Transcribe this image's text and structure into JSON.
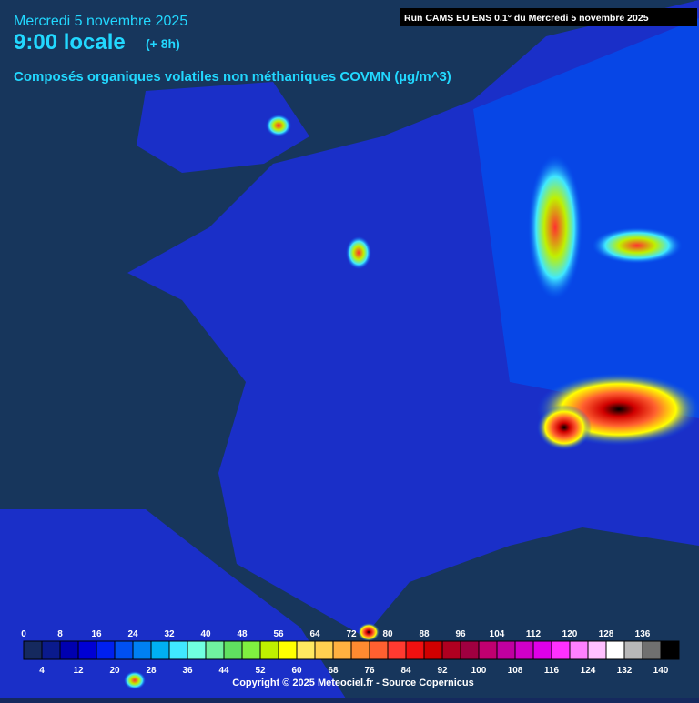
{
  "header": {
    "date": "Mercredi 5 novembre 2025",
    "time": "9:00 locale",
    "lead": "(+ 8h)",
    "run": "Run CAMS EU ENS 0.1° du Mercredi 5 novembre 2025",
    "subtitle": "Composés organiques volatiles non méthaniques COVMN (µg/m^3)"
  },
  "legend": {
    "labels": [
      0,
      4,
      8,
      12,
      16,
      20,
      24,
      28,
      32,
      36,
      40,
      44,
      48,
      52,
      56,
      60,
      64,
      68,
      72,
      76,
      80,
      84,
      88,
      92,
      96,
      100,
      104,
      108,
      112,
      116,
      120,
      124,
      128,
      132,
      136,
      140
    ],
    "colors": [
      "#15295e",
      "#0a1a8c",
      "#0000b0",
      "#0000d4",
      "#0020f0",
      "#0050f2",
      "#0080f2",
      "#00b0f2",
      "#40e8ff",
      "#70ffe0",
      "#70f0a0",
      "#60e060",
      "#80f040",
      "#c0f000",
      "#ffff00",
      "#ffe860",
      "#ffd050",
      "#ffb040",
      "#ff8a30",
      "#ff6030",
      "#ff3a30",
      "#f01010",
      "#d00000",
      "#b00020",
      "#a00040",
      "#c00070",
      "#c000a0",
      "#d000c8",
      "#e000e8",
      "#ff30ff",
      "#ff80ff",
      "#ffc0ff",
      "#ffffff",
      "#b8b8b8",
      "#707070",
      "#000000"
    ]
  },
  "footer": {
    "copyright": "Copyright © 2025 Meteociel.fr - Source Copernicus"
  }
}
